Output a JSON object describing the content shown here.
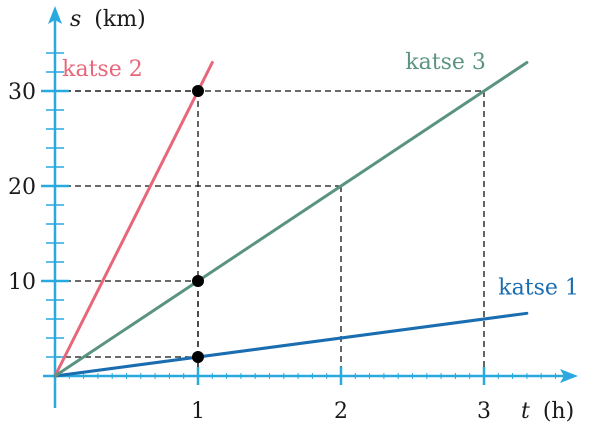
{
  "chart_data": {
    "type": "line",
    "xlabel_var": "t",
    "xlabel_unit": "(h)",
    "ylabel_var": "s",
    "ylabel_unit": "(km)",
    "xlim": [
      0,
      3.5
    ],
    "ylim": [
      0,
      36
    ],
    "x_ticks": [
      1,
      2,
      3
    ],
    "y_ticks": [
      10,
      20,
      30
    ],
    "y_minor_step": 2,
    "x_minor_step": 0.1,
    "grid": false,
    "axis_color": "#29a9e0",
    "series": [
      {
        "name": "katse 1",
        "color": "#1a6db0",
        "speed": 2,
        "x": [
          0,
          3.3
        ],
        "y": [
          0,
          6.6
        ],
        "label_pos": [
          3.1,
          8.6
        ]
      },
      {
        "name": "katse 2",
        "color": "#e8667a",
        "speed": 30,
        "x": [
          0,
          1.1
        ],
        "y": [
          0,
          33
        ],
        "label_pos": [
          0.05,
          31.6
        ]
      },
      {
        "name": "katse 3",
        "color": "#5a9480",
        "speed": 10,
        "x": [
          0,
          3.3
        ],
        "y": [
          0,
          33
        ],
        "label_pos": [
          2.45,
          32.3
        ]
      }
    ],
    "marked_points": [
      {
        "x": 1,
        "y": 2
      },
      {
        "x": 1,
        "y": 10
      },
      {
        "x": 1,
        "y": 30
      }
    ],
    "guide_lines": [
      {
        "x": 1,
        "y": 30
      },
      {
        "x": 1,
        "y": 10
      },
      {
        "x": 1,
        "y": 2
      },
      {
        "x": 2,
        "y": 20
      },
      {
        "x": 3,
        "y": 30
      }
    ]
  }
}
